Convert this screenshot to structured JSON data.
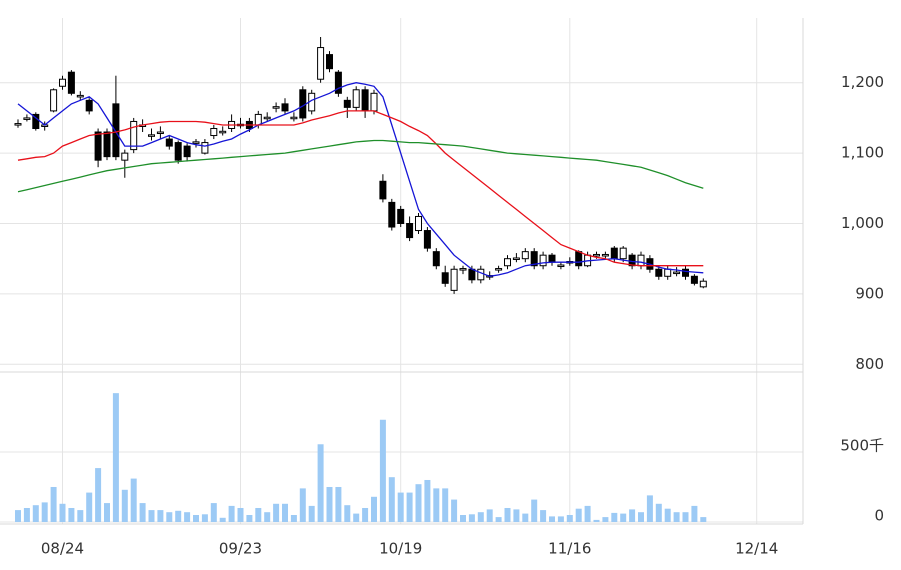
{
  "chart_data": {
    "type": "candlestick",
    "categories": [
      null,
      null,
      null,
      null,
      null,
      "08/24",
      null,
      null,
      null,
      null,
      null,
      null,
      null,
      null,
      null,
      null,
      null,
      null,
      null,
      null,
      null,
      null,
      null,
      null,
      null,
      "09/23",
      null,
      null,
      null,
      null,
      null,
      null,
      null,
      null,
      null,
      null,
      null,
      null,
      null,
      null,
      null,
      null,
      null,
      "10/19",
      null,
      null,
      null,
      null,
      null,
      null,
      null,
      null,
      null,
      null,
      null,
      null,
      null,
      null,
      null,
      null,
      null,
      null,
      "11/16",
      null,
      null,
      null,
      null,
      null,
      null,
      null,
      null,
      null,
      null,
      null,
      null,
      null,
      null,
      null,
      null,
      null,
      null,
      null,
      null,
      "12/14"
    ],
    "candles": {
      "open": [
        1140,
        1148,
        1155,
        1138,
        1160,
        1195,
        1215,
        1180,
        1175,
        1130,
        1130,
        1170,
        1090,
        1105,
        1138,
        1124,
        1128,
        1120,
        1115,
        1110,
        1114,
        1100,
        1125,
        1129,
        1135,
        1139,
        1145,
        1140,
        1149,
        1164,
        1170,
        1149,
        1190,
        1160,
        1205,
        1240,
        1215,
        1175,
        1165,
        1190,
        1160,
        1060,
        1030,
        1020,
        1000,
        990,
        990,
        960,
        930,
        905,
        934,
        935,
        920,
        924,
        934,
        940,
        949,
        950,
        960,
        940,
        955,
        939,
        944,
        960,
        940,
        954,
        954,
        965,
        950,
        955,
        940,
        950,
        935,
        925,
        929,
        935,
        925,
        910,
        null,
        null,
        null,
        null,
        null,
        null
      ],
      "high": [
        1148,
        1155,
        1158,
        1145,
        1192,
        1210,
        1218,
        1188,
        1178,
        1135,
        1135,
        1210,
        1105,
        1150,
        1148,
        1135,
        1138,
        1125,
        1118,
        1114,
        1120,
        1120,
        1140,
        1138,
        1155,
        1150,
        1150,
        1160,
        1158,
        1172,
        1178,
        1158,
        1195,
        1190,
        1265,
        1245,
        1218,
        1180,
        1195,
        1195,
        1190,
        1070,
        1035,
        1025,
        1010,
        1015,
        995,
        965,
        940,
        940,
        940,
        940,
        940,
        932,
        940,
        955,
        958,
        965,
        965,
        960,
        958,
        945,
        952,
        962,
        960,
        960,
        960,
        968,
        968,
        958,
        960,
        955,
        940,
        940,
        938,
        940,
        928,
        922,
        null,
        null,
        null,
        null,
        null,
        null
      ],
      "low": [
        1136,
        1145,
        1132,
        1132,
        1158,
        1190,
        1182,
        1175,
        1155,
        1080,
        1090,
        1090,
        1065,
        1100,
        1130,
        1118,
        1120,
        1105,
        1085,
        1088,
        1108,
        1098,
        1120,
        1125,
        1130,
        1135,
        1130,
        1135,
        1145,
        1158,
        1155,
        1145,
        1145,
        1155,
        1200,
        1215,
        1180,
        1150,
        1160,
        1150,
        1155,
        1030,
        990,
        995,
        975,
        985,
        960,
        935,
        910,
        900,
        928,
        915,
        915,
        920,
        930,
        935,
        945,
        945,
        935,
        935,
        940,
        935,
        940,
        935,
        938,
        950,
        950,
        945,
        945,
        935,
        935,
        930,
        920,
        920,
        925,
        920,
        912,
        908,
        null,
        null,
        null,
        null,
        null,
        null
      ],
      "close": [
        1142,
        1150,
        1135,
        1140,
        1190,
        1205,
        1185,
        1182,
        1160,
        1090,
        1095,
        1095,
        1100,
        1145,
        1140,
        1126,
        1130,
        1110,
        1090,
        1095,
        1116,
        1115,
        1135,
        1131,
        1145,
        1141,
        1135,
        1155,
        1151,
        1166,
        1160,
        1151,
        1150,
        1185,
        1250,
        1220,
        1185,
        1165,
        1190,
        1160,
        1185,
        1035,
        995,
        1000,
        980,
        1010,
        965,
        940,
        915,
        935,
        936,
        920,
        935,
        926,
        936,
        950,
        951,
        960,
        940,
        955,
        945,
        941,
        946,
        940,
        955,
        956,
        956,
        950,
        965,
        940,
        955,
        935,
        925,
        935,
        931,
        925,
        915,
        918,
        null,
        null,
        null,
        null,
        null,
        null
      ]
    },
    "series": [
      {
        "color": "#1515d6",
        "values": [
          1170,
          1160,
          1150,
          1140,
          1150,
          1160,
          1170,
          1175,
          1180,
          1170,
          1150,
          1130,
          1110,
          1110,
          1110,
          1115,
          1120,
          1125,
          1120,
          1115,
          1112,
          1110,
          1113,
          1117,
          1120,
          1127,
          1133,
          1140,
          1145,
          1150,
          1155,
          1160,
          1167,
          1175,
          1180,
          1185,
          1192,
          1197,
          1200,
          1198,
          1195,
          1180,
          1140,
          1100,
          1060,
          1020,
          1000,
          985,
          970,
          955,
          945,
          935,
          930,
          925,
          927,
          930,
          935,
          940,
          942,
          944,
          945,
          945,
          945,
          945,
          947,
          948,
          949,
          950,
          948,
          946,
          945,
          942,
          938,
          935,
          934,
          932,
          931,
          930,
          null,
          null,
          null,
          null,
          null,
          null
        ]
      },
      {
        "color": "#e8101a",
        "values": [
          1090,
          1092,
          1094,
          1095,
          1100,
          1110,
          1115,
          1120,
          1125,
          1127,
          1128,
          1130,
          1133,
          1137,
          1140,
          1142,
          1144,
          1145,
          1145,
          1145,
          1145,
          1144,
          1142,
          1140,
          1140,
          1140,
          1140,
          1140,
          1140,
          1140,
          1140,
          1140,
          1143,
          1147,
          1150,
          1153,
          1157,
          1160,
          1160,
          1160,
          1160,
          1155,
          1150,
          1145,
          1138,
          1132,
          1125,
          1113,
          1100,
          1090,
          1080,
          1070,
          1060,
          1050,
          1040,
          1030,
          1020,
          1010,
          1000,
          990,
          980,
          970,
          965,
          960,
          955,
          952,
          950,
          945,
          943,
          941,
          940,
          940,
          940,
          940,
          940,
          940,
          940,
          940,
          null,
          null,
          null,
          null,
          null,
          null
        ]
      },
      {
        "color": "#1f8f2a",
        "values": [
          1045,
          1048,
          1051,
          1054,
          1057,
          1060,
          1063,
          1066,
          1069,
          1072,
          1075,
          1077,
          1079,
          1081,
          1083,
          1085,
          1086,
          1087,
          1088,
          1089,
          1090,
          1091,
          1092,
          1093,
          1094,
          1095,
          1096,
          1097,
          1098,
          1099,
          1100,
          1102,
          1104,
          1106,
          1108,
          1110,
          1112,
          1114,
          1116,
          1117,
          1118,
          1118,
          1117,
          1116,
          1115,
          1115,
          1114,
          1113,
          1112,
          1111,
          1110,
          1108,
          1106,
          1104,
          1102,
          1100,
          1099,
          1098,
          1097,
          1096,
          1095,
          1094,
          1093,
          1092,
          1091,
          1090,
          1088,
          1086,
          1084,
          1082,
          1080,
          1076,
          1072,
          1068,
          1063,
          1058,
          1054,
          1050,
          null,
          null,
          null,
          null,
          null,
          null
        ]
      }
    ],
    "ylim": [
      789,
      1292
    ],
    "yticks": [
      800,
      900,
      {
        "value": 1000,
        "label": "1,000"
      },
      {
        "value": 1100,
        "label": "1,100"
      },
      {
        "value": 1200,
        "label": "1,200"
      }
    ],
    "volume": {
      "color": "#9ccaf5",
      "values": [
        85,
        100,
        120,
        140,
        250,
        130,
        100,
        85,
        210,
        385,
        135,
        920,
        230,
        310,
        135,
        85,
        85,
        70,
        80,
        70,
        50,
        55,
        135,
        30,
        115,
        100,
        50,
        100,
        70,
        130,
        130,
        50,
        240,
        115,
        555,
        250,
        250,
        120,
        60,
        100,
        180,
        730,
        320,
        210,
        210,
        270,
        300,
        240,
        240,
        160,
        50,
        55,
        70,
        90,
        35,
        100,
        90,
        60,
        160,
        85,
        40,
        40,
        50,
        95,
        115,
        15,
        35,
        65,
        60,
        90,
        70,
        190,
        130,
        95,
        70,
        70,
        115,
        35,
        null,
        null,
        null,
        null,
        null,
        null
      ],
      "ylim": [
        0,
        1071
      ],
      "yticks": [
        0,
        {
          "value": 500,
          "label": "500千"
        }
      ]
    }
  }
}
